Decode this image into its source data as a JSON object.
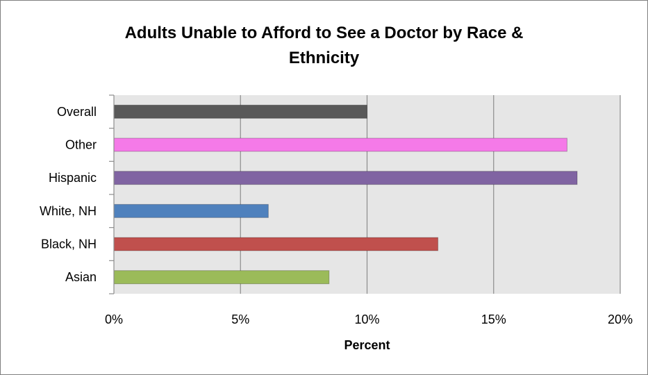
{
  "chart_data": {
    "type": "bar",
    "orientation": "horizontal",
    "title_lines": [
      "Adults Unable to Afford to See a Doctor by Race &",
      "Ethnicity"
    ],
    "xlabel": "Percent",
    "ylabel": "",
    "categories": [
      "Overall",
      "Other",
      "Hispanic",
      "White, NH",
      "Black, NH",
      "Asian"
    ],
    "values": [
      10.0,
      17.9,
      18.3,
      6.1,
      12.8,
      8.5
    ],
    "colors": [
      "#595959",
      "#f57ae8",
      "#8064a2",
      "#4f81bd",
      "#c0504d",
      "#9bbb59"
    ],
    "xlim": [
      0,
      20
    ],
    "xticks": [
      0,
      5,
      10,
      15,
      20
    ],
    "xtick_labels": [
      "0%",
      "5%",
      "10%",
      "15%",
      "20%"
    ],
    "grid": "vertical",
    "plot_background": "#e6e6e6",
    "legend": "none"
  }
}
